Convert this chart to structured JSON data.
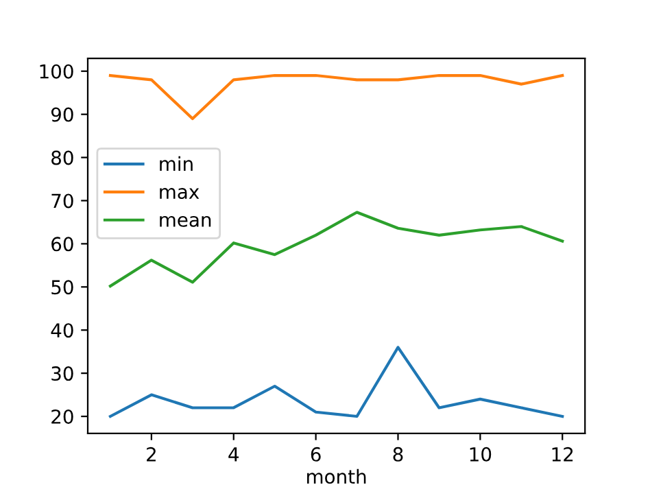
{
  "chart_data": {
    "type": "line",
    "xlabel": "month",
    "x": [
      1,
      2,
      3,
      4,
      5,
      6,
      7,
      8,
      9,
      10,
      11,
      12
    ],
    "series": [
      {
        "name": "min",
        "color": "#1f77b4",
        "values": [
          20,
          25,
          22,
          22,
          27,
          21,
          20,
          36,
          22,
          24,
          22,
          20
        ]
      },
      {
        "name": "max",
        "color": "#ff7f0e",
        "values": [
          99,
          98,
          89,
          98,
          99,
          99,
          98,
          98,
          99,
          99,
          97,
          99
        ]
      },
      {
        "name": "mean",
        "color": "#2ca02c",
        "values": [
          50.2,
          56.2,
          51.1,
          60.2,
          57.5,
          62,
          67.3,
          63.6,
          62,
          63.2,
          64,
          60.6
        ]
      }
    ],
    "xlim": [
      0.45,
      12.55
    ],
    "xticks": [
      2,
      4,
      6,
      8,
      10,
      12
    ],
    "ylim": [
      16.05,
      102.95
    ],
    "yticks": [
      20,
      30,
      40,
      50,
      60,
      70,
      80,
      90,
      100
    ],
    "legend": "center left",
    "grid": false
  }
}
